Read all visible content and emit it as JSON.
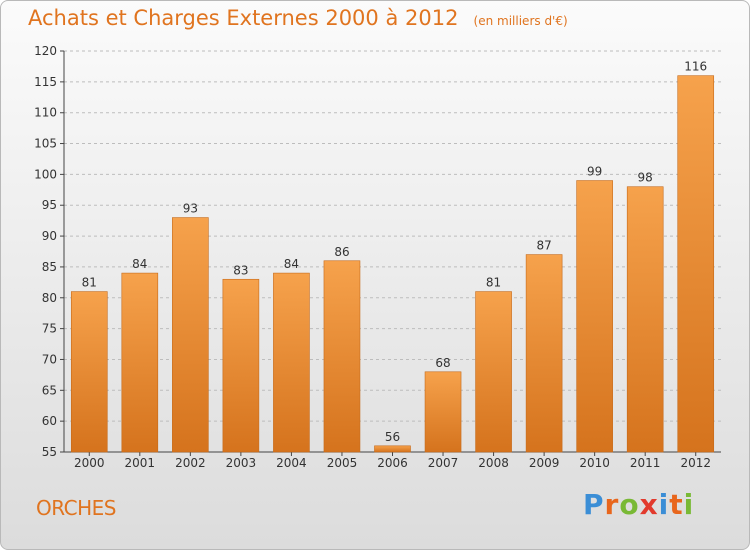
{
  "title": {
    "main": "Achats et Charges Externes 2000 à 2012",
    "unit": "(en milliers d'€)"
  },
  "commune": "ORCHES",
  "logo": {
    "text": "Proxiti",
    "letter_colors": [
      "#3b8ed6",
      "#e8661c",
      "#79b935",
      "#e23a2d",
      "#3b8ed6",
      "#e8661c",
      "#79b935"
    ]
  },
  "colors": {
    "accent": "#e0741f",
    "bar_light": "#f6a24c",
    "bar_dark": "#d5731d"
  },
  "chart_data": {
    "type": "bar",
    "categories": [
      "2000",
      "2001",
      "2002",
      "2003",
      "2004",
      "2005",
      "2006",
      "2007",
      "2008",
      "2009",
      "2010",
      "2011",
      "2012"
    ],
    "values": [
      81,
      84,
      93,
      83,
      84,
      86,
      56,
      68,
      81,
      87,
      99,
      98,
      116
    ],
    "ylim": [
      55,
      120
    ],
    "yticks": [
      55,
      60,
      65,
      70,
      75,
      80,
      85,
      90,
      95,
      100,
      105,
      110,
      115,
      120
    ],
    "grid": "horizontal-dashed",
    "legend": "none"
  }
}
